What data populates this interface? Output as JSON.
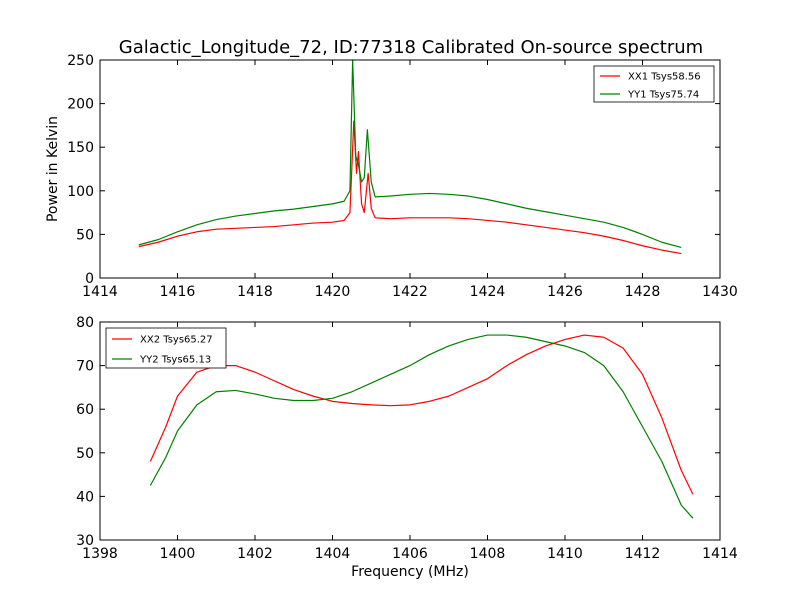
{
  "title": "Galactic_Longitude_72, ID:77318 Calibrated On-source spectrum",
  "colors": {
    "xx": "#ff0000",
    "yy": "#008000"
  },
  "chart_data": [
    {
      "type": "line",
      "title": "Galactic_Longitude_72, ID:77318 Calibrated On-source spectrum",
      "xlabel": "",
      "ylabel": "Power in Kelvin",
      "xlim": [
        1414,
        1430
      ],
      "ylim": [
        0,
        250
      ],
      "xticks": [
        1414,
        1416,
        1418,
        1420,
        1422,
        1424,
        1426,
        1428,
        1430
      ],
      "yticks": [
        0,
        50,
        100,
        150,
        200,
        250
      ],
      "grid": false,
      "legend_position": "top-right",
      "series": [
        {
          "name": "XX1 Tsys58.56",
          "color": "#ff0000",
          "points": [
            [
              1415.0,
              36
            ],
            [
              1415.5,
              41
            ],
            [
              1416.0,
              48
            ],
            [
              1416.5,
              53
            ],
            [
              1417.0,
              56
            ],
            [
              1417.5,
              57
            ],
            [
              1418.0,
              58
            ],
            [
              1418.5,
              59
            ],
            [
              1419.0,
              61
            ],
            [
              1419.5,
              63
            ],
            [
              1420.0,
              64
            ],
            [
              1420.3,
              66
            ],
            [
              1420.45,
              75
            ],
            [
              1420.55,
              180
            ],
            [
              1420.62,
              120
            ],
            [
              1420.67,
              145
            ],
            [
              1420.75,
              85
            ],
            [
              1420.82,
              75
            ],
            [
              1420.92,
              120
            ],
            [
              1421.0,
              80
            ],
            [
              1421.1,
              69
            ],
            [
              1421.5,
              68
            ],
            [
              1422.0,
              69
            ],
            [
              1422.5,
              69
            ],
            [
              1423.0,
              69
            ],
            [
              1423.5,
              68
            ],
            [
              1424.0,
              66
            ],
            [
              1424.5,
              64
            ],
            [
              1425.0,
              61
            ],
            [
              1425.5,
              58
            ],
            [
              1426.0,
              55
            ],
            [
              1426.5,
              52
            ],
            [
              1427.0,
              48
            ],
            [
              1427.5,
              43
            ],
            [
              1428.0,
              37
            ],
            [
              1428.5,
              32
            ],
            [
              1429.0,
              28
            ]
          ]
        },
        {
          "name": "YY1 Tsys75.74",
          "color": "#008000",
          "points": [
            [
              1415.0,
              38
            ],
            [
              1415.5,
              44
            ],
            [
              1416.0,
              53
            ],
            [
              1416.5,
              61
            ],
            [
              1417.0,
              67
            ],
            [
              1417.5,
              71
            ],
            [
              1418.0,
              74
            ],
            [
              1418.5,
              77
            ],
            [
              1419.0,
              79
            ],
            [
              1419.5,
              82
            ],
            [
              1420.0,
              85
            ],
            [
              1420.3,
              88
            ],
            [
              1420.45,
              100
            ],
            [
              1420.52,
              250
            ],
            [
              1420.6,
              140
            ],
            [
              1420.67,
              130
            ],
            [
              1420.75,
              110
            ],
            [
              1420.82,
              115
            ],
            [
              1420.9,
              170
            ],
            [
              1421.0,
              110
            ],
            [
              1421.1,
              93
            ],
            [
              1421.5,
              94
            ],
            [
              1422.0,
              96
            ],
            [
              1422.5,
              97
            ],
            [
              1423.0,
              96
            ],
            [
              1423.5,
              94
            ],
            [
              1424.0,
              90
            ],
            [
              1424.5,
              85
            ],
            [
              1425.0,
              80
            ],
            [
              1425.5,
              76
            ],
            [
              1426.0,
              72
            ],
            [
              1426.5,
              68
            ],
            [
              1427.0,
              64
            ],
            [
              1427.5,
              58
            ],
            [
              1428.0,
              50
            ],
            [
              1428.5,
              41
            ],
            [
              1429.0,
              35
            ]
          ]
        }
      ]
    },
    {
      "type": "line",
      "title": "",
      "xlabel": "Frequency (MHz)",
      "ylabel": "",
      "xlim": [
        1398,
        1414
      ],
      "ylim": [
        30,
        80
      ],
      "xticks": [
        1398,
        1400,
        1402,
        1404,
        1406,
        1408,
        1410,
        1412,
        1414
      ],
      "yticks": [
        30,
        40,
        50,
        60,
        70,
        80
      ],
      "grid": false,
      "legend_position": "top-left",
      "series": [
        {
          "name": "XX2 Tsys65.27",
          "color": "#ff0000",
          "points": [
            [
              1399.3,
              48
            ],
            [
              1399.7,
              56
            ],
            [
              1400.0,
              63
            ],
            [
              1400.5,
              68.5
            ],
            [
              1401.0,
              70
            ],
            [
              1401.5,
              70
            ],
            [
              1402.0,
              68.5
            ],
            [
              1402.5,
              66.5
            ],
            [
              1403.0,
              64.5
            ],
            [
              1403.5,
              63
            ],
            [
              1404.0,
              61.8
            ],
            [
              1404.5,
              61.3
            ],
            [
              1405.0,
              61
            ],
            [
              1405.5,
              60.8
            ],
            [
              1406.0,
              61
            ],
            [
              1406.5,
              61.8
            ],
            [
              1407.0,
              63
            ],
            [
              1407.5,
              65
            ],
            [
              1408.0,
              67
            ],
            [
              1408.5,
              70
            ],
            [
              1409.0,
              72.5
            ],
            [
              1409.5,
              74.5
            ],
            [
              1410.0,
              76
            ],
            [
              1410.5,
              77
            ],
            [
              1411.0,
              76.5
            ],
            [
              1411.5,
              74
            ],
            [
              1412.0,
              68
            ],
            [
              1412.5,
              58
            ],
            [
              1413.0,
              46
            ],
            [
              1413.3,
              40.5
            ]
          ]
        },
        {
          "name": "YY2 Tsys65.13",
          "color": "#008000",
          "points": [
            [
              1399.3,
              42.5
            ],
            [
              1399.7,
              49
            ],
            [
              1400.0,
              55
            ],
            [
              1400.5,
              61
            ],
            [
              1401.0,
              64
            ],
            [
              1401.5,
              64.3
            ],
            [
              1402.0,
              63.5
            ],
            [
              1402.5,
              62.5
            ],
            [
              1403.0,
              62
            ],
            [
              1403.5,
              62
            ],
            [
              1404.0,
              62.5
            ],
            [
              1404.5,
              64
            ],
            [
              1405.0,
              66
            ],
            [
              1405.5,
              68
            ],
            [
              1406.0,
              70
            ],
            [
              1406.5,
              72.5
            ],
            [
              1407.0,
              74.5
            ],
            [
              1407.5,
              76
            ],
            [
              1408.0,
              77
            ],
            [
              1408.5,
              77
            ],
            [
              1409.0,
              76.5
            ],
            [
              1409.5,
              75.5
            ],
            [
              1410.0,
              74.5
            ],
            [
              1410.5,
              73
            ],
            [
              1411.0,
              70
            ],
            [
              1411.5,
              64
            ],
            [
              1412.0,
              56
            ],
            [
              1412.5,
              48
            ],
            [
              1413.0,
              38
            ],
            [
              1413.3,
              35
            ]
          ]
        }
      ]
    }
  ]
}
